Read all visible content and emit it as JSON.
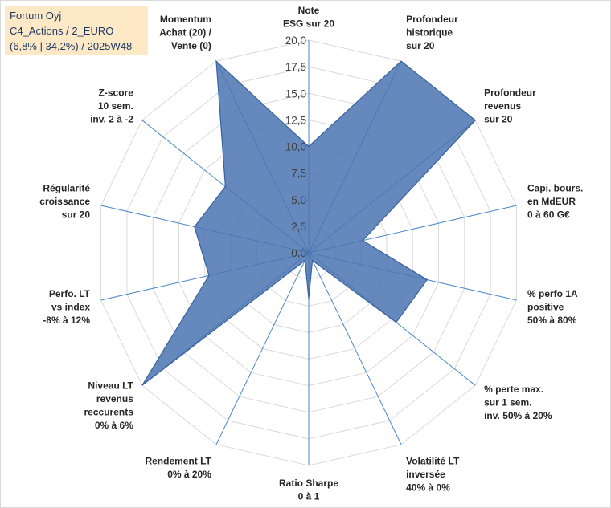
{
  "header": {
    "line1": "Fortum Oyj",
    "line2": "C4_Actions / 2_EURO",
    "line3": "(6,8% | 34,2%) / 2025W48"
  },
  "chart_data": {
    "type": "radar",
    "rmin": 0,
    "rmax": 20,
    "ticks": [
      "0,0",
      "2,5",
      "5,0",
      "7,5",
      "10,0",
      "12,5",
      "15,0",
      "17,5",
      "20,0"
    ],
    "gridlines": true,
    "colors": {
      "fill": "#4a74b0",
      "stroke": "#3a62a0",
      "grid": "#d9d9d9",
      "spoke": "#4a86c8"
    },
    "axes": [
      {
        "label": [
          "Note",
          "ESG sur 20"
        ],
        "value": 10.0
      },
      {
        "label": [
          "Profondeur",
          "historique",
          "sur 20"
        ],
        "value": 20.0
      },
      {
        "label": [
          "Profondeur",
          "revenus",
          "sur 20"
        ],
        "value": 20.0
      },
      {
        "label": [
          "Capi. bours.",
          "en MdEUR",
          "0 à 60 G€"
        ],
        "value": 5.2
      },
      {
        "label": [
          "% perfo 1A",
          "positive",
          "50% à 80%"
        ],
        "value": 11.4
      },
      {
        "label": [
          "% perte max.",
          "sur 1 sem.",
          "inv. 50% à 20%"
        ],
        "value": 10.5
      },
      {
        "label": [
          "Volatilité LT",
          "inversée",
          "40% à 0%"
        ],
        "value": 0.8
      },
      {
        "label": [
          "Ratio Sharpe",
          "0 à 1"
        ],
        "value": 4.3
      },
      {
        "label": [
          "Rendement LT",
          "0% à 20%"
        ],
        "value": 0.8
      },
      {
        "label": [
          "Niveau LT",
          "revenus",
          "reccurents",
          "0% à 6%"
        ],
        "value": 20.0
      },
      {
        "label": [
          "Perfo. LT",
          "vs index",
          "-8% à 12%"
        ],
        "value": 9.6
      },
      {
        "label": [
          "Régularité",
          "croissance",
          "sur 20"
        ],
        "value": 11.0
      },
      {
        "label": [
          "Z-score",
          "10 sem.",
          "inv. 2 à -2"
        ],
        "value": 10.0
      },
      {
        "label": [
          "Momentum",
          "Achat (20) /",
          "Vente (0)"
        ],
        "value": 20.0
      }
    ]
  }
}
